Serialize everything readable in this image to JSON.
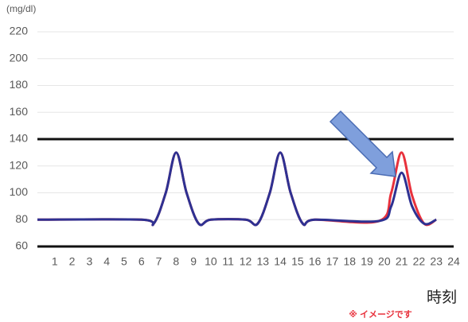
{
  "chart_data": {
    "type": "line",
    "y_unit_label": "(mg/dl)",
    "x_axis_label": "時刻",
    "note": "※ イメージです",
    "x": [
      0,
      6,
      6.7,
      7.4,
      8,
      8.6,
      9.3,
      10,
      12,
      12.7,
      13.4,
      14,
      14.6,
      15.3,
      16,
      19.7,
      20.4,
      21,
      21.6,
      22.3,
      23
    ],
    "series": [
      {
        "name": null,
        "color": "#e8313c",
        "values": [
          80,
          80,
          77,
          100,
          130,
          100,
          77,
          80,
          80,
          77,
          100,
          130,
          100,
          77,
          80,
          79,
          100,
          130,
          98,
          77,
          80
        ]
      },
      {
        "name": null,
        "color": "#2e3192",
        "values": [
          80,
          80,
          77,
          100,
          130,
          100,
          77,
          80,
          80,
          77,
          100,
          130,
          100,
          77,
          80,
          79,
          90,
          115,
          90,
          77,
          80
        ]
      }
    ],
    "xlim": [
      0,
      24
    ],
    "xticks": [
      1,
      2,
      3,
      4,
      5,
      6,
      7,
      8,
      9,
      10,
      11,
      12,
      13,
      14,
      15,
      16,
      17,
      18,
      19,
      20,
      21,
      22,
      23,
      24
    ],
    "ylim": [
      60,
      220
    ],
    "yticks": [
      60,
      80,
      100,
      120,
      140,
      160,
      180,
      200,
      220
    ],
    "reference_lines": [
      140,
      60
    ],
    "grid": true
  }
}
